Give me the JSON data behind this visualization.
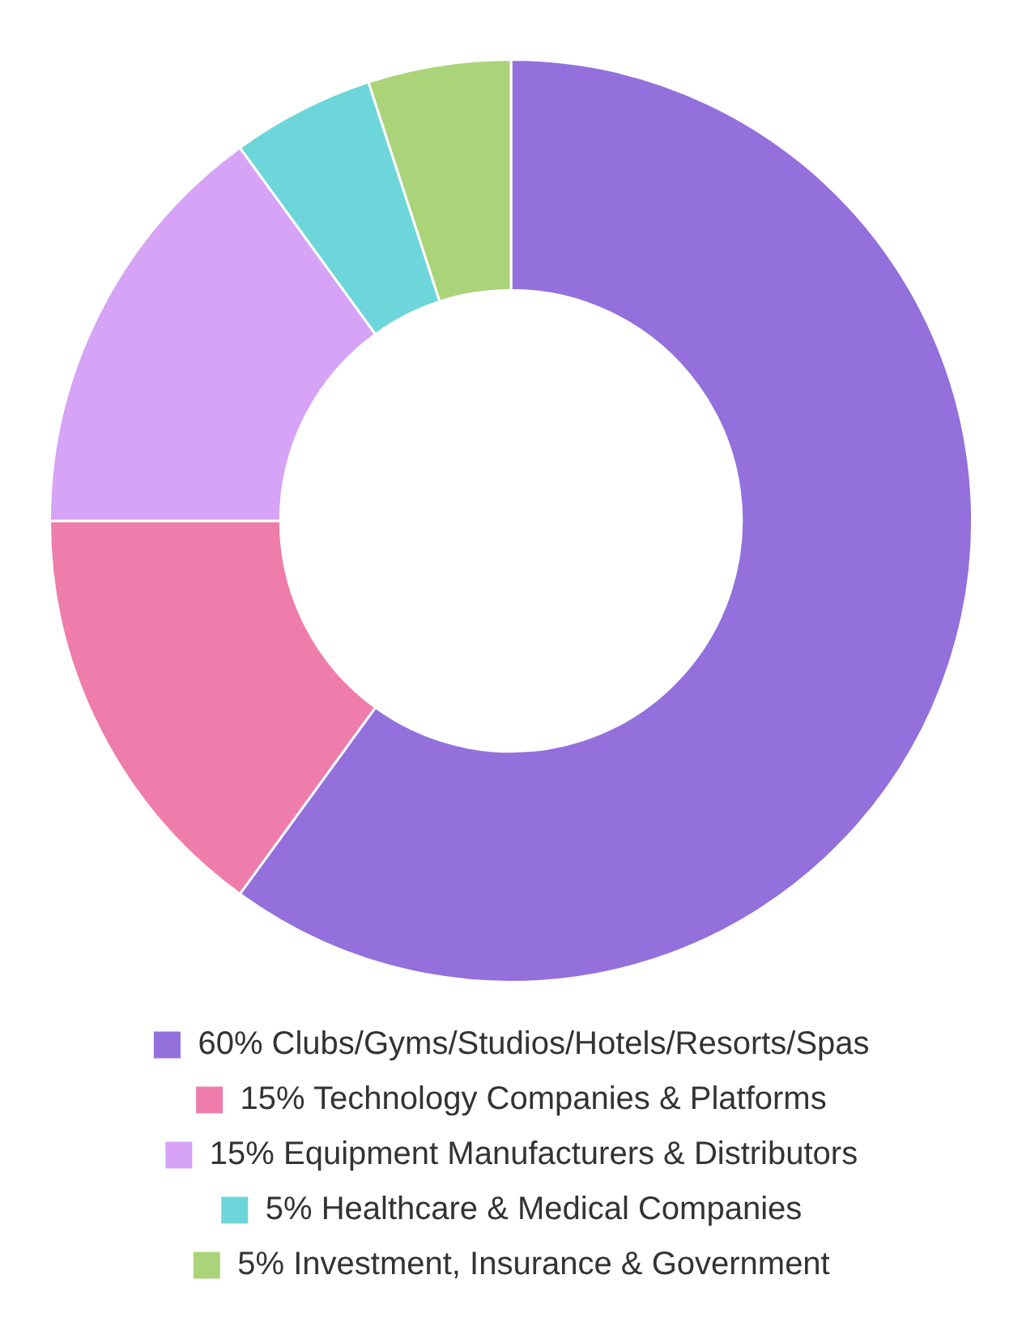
{
  "chart_data": {
    "type": "donut",
    "categories": [
      "60% Clubs/Gyms/Studios/Hotels/Resorts/Spas",
      "15% Technology Companies & Platforms",
      "15% Equipment Manufacturers & Distributors",
      "5% Healthcare & Medical Companies",
      "5% Investment, Insurance & Government"
    ],
    "values": [
      60,
      15,
      15,
      5,
      5
    ],
    "colors": [
      "#9370db",
      "#ef7dab",
      "#d6a3f6",
      "#6dd6da",
      "#abd47a"
    ],
    "legend": "bottom"
  }
}
